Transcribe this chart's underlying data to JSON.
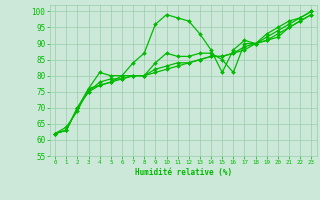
{
  "xlabel": "Humidité relative (%)",
  "xlim": [
    -0.5,
    23.5
  ],
  "ylim": [
    55,
    102
  ],
  "yticks": [
    55,
    60,
    65,
    70,
    75,
    80,
    85,
    90,
    95,
    100
  ],
  "xticks": [
    0,
    1,
    2,
    3,
    4,
    5,
    6,
    7,
    8,
    9,
    10,
    11,
    12,
    13,
    14,
    15,
    16,
    17,
    18,
    19,
    20,
    21,
    22,
    23
  ],
  "bg_color": "#cce8d8",
  "grid_color": "#99ccaa",
  "line_color": "#00bb00",
  "line_width": 0.9,
  "marker": "D",
  "marker_size": 2.0,
  "series": [
    [
      62,
      64,
      69,
      76,
      81,
      80,
      80,
      84,
      87,
      96,
      99,
      98,
      97,
      93,
      88,
      81,
      88,
      91,
      90,
      93,
      95,
      97,
      98,
      100
    ],
    [
      62,
      63,
      70,
      76,
      77,
      78,
      80,
      80,
      80,
      84,
      87,
      86,
      86,
      87,
      87,
      85,
      81,
      90,
      90,
      92,
      94,
      96,
      98,
      100
    ],
    [
      62,
      63,
      70,
      75,
      78,
      79,
      79,
      80,
      80,
      82,
      83,
      84,
      84,
      85,
      86,
      86,
      87,
      89,
      90,
      91,
      92,
      95,
      97,
      99
    ],
    [
      62,
      63,
      70,
      75,
      77,
      78,
      79,
      80,
      80,
      81,
      82,
      83,
      84,
      85,
      86,
      86,
      87,
      88,
      90,
      91,
      93,
      95,
      97,
      99
    ]
  ]
}
